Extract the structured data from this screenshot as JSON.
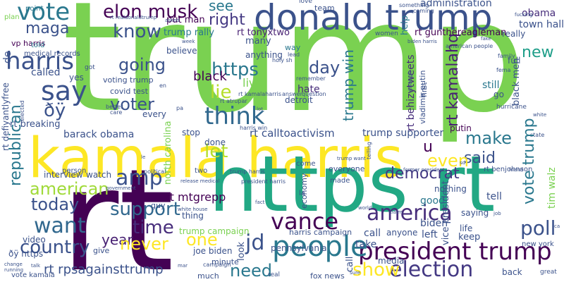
{
  "words": [
    {
      "text": "trump",
      "color": "#7ad151"
    },
    {
      "text": "rt",
      "color": "#440154"
    },
    {
      "text": "kamala harris",
      "color": "#fde725"
    },
    {
      "text": "https rt",
      "color": "#22a884"
    },
    {
      "text": "donald trump",
      "color": "#3b528b"
    },
    {
      "text": "president trump",
      "color": "#440154"
    },
    {
      "text": "people",
      "color": "#2a788e"
    },
    {
      "text": "elon musk",
      "color": "#440154"
    },
    {
      "text": "vote",
      "color": "#2a788e"
    },
    {
      "text": "think",
      "color": "#31688e"
    },
    {
      "text": "say",
      "color": "#3b528b"
    },
    {
      "text": "harris",
      "color": "#3b528b"
    },
    {
      "text": "america",
      "color": "#472d7b"
    },
    {
      "text": "election",
      "color": "#443983"
    },
    {
      "text": "vance",
      "color": "#440154"
    },
    {
      "text": "amp",
      "color": "#3b528b"
    },
    {
      "text": "want",
      "color": "#31688e"
    },
    {
      "text": "poll",
      "color": "#3b528b"
    },
    {
      "text": "know",
      "color": "#3b528b"
    },
    {
      "text": "maga",
      "color": "#3b528b"
    },
    {
      "text": "right",
      "color": "#443983"
    },
    {
      "text": "https",
      "color": "#2a788e"
    },
    {
      "text": "going",
      "color": "#3b528b"
    },
    {
      "text": "voter",
      "color": "#3b528b"
    },
    {
      "text": "republican",
      "color": "#2a788e"
    },
    {
      "text": "american",
      "color": "#a0da39"
    },
    {
      "text": "time",
      "color": "#472d7b"
    },
    {
      "text": "support",
      "color": "#31688e"
    },
    {
      "text": "country",
      "color": "#3b528b"
    },
    {
      "text": "year",
      "color": "#482173"
    },
    {
      "text": "need",
      "color": "#2a788e"
    },
    {
      "text": "show",
      "color": "#fde725"
    },
    {
      "text": "never",
      "color": "#fde725"
    },
    {
      "text": "democrat",
      "color": "#443983"
    },
    {
      "text": "today",
      "color": "#3b528b"
    },
    {
      "text": "make",
      "color": "#2a788e"
    },
    {
      "text": "said",
      "color": "#3b528b"
    },
    {
      "text": "even",
      "color": "#fde725"
    },
    {
      "text": "vote trump",
      "color": "#2a788e"
    },
    {
      "text": "rt kamalahq",
      "color": "#482173"
    },
    {
      "text": "trump win",
      "color": "#2a788e"
    },
    {
      "text": "rt rpsagainsttrump",
      "color": "#3b528b"
    },
    {
      "text": "rt mtgrepp",
      "color": "#440154"
    },
    {
      "text": "rt calltoactivism",
      "color": "#3b528b"
    },
    {
      "text": "new",
      "color": "#1f9e89"
    },
    {
      "text": "day",
      "color": "#3b528b"
    },
    {
      "text": "lie",
      "color": "#b5de2b"
    },
    {
      "text": "let",
      "color": "#b5de2b"
    },
    {
      "text": "one",
      "color": "#fde725"
    },
    {
      "text": "jd",
      "color": "#3b528b"
    },
    {
      "text": "see",
      "color": "#2a788e"
    },
    {
      "text": "u",
      "color": "#440154"
    },
    {
      "text": "ðÿ",
      "color": "#3b528b"
    },
    {
      "text": "black",
      "color": "#440154"
    },
    {
      "text": "live",
      "color": "#7ad151"
    },
    {
      "text": "hate",
      "color": "#472d7b"
    },
    {
      "text": "trump supporter",
      "color": "#3b528b"
    },
    {
      "text": "barack obama",
      "color": "#3b528b"
    },
    {
      "text": "rt behizytweets",
      "color": "#472d7b"
    },
    {
      "text": "tim walz",
      "color": "#7ad151"
    },
    {
      "text": "rt gunthereagleman",
      "color": "#440154"
    },
    {
      "text": "rt tonyxtwo",
      "color": "#482173"
    },
    {
      "text": "administration",
      "color": "#3b528b"
    },
    {
      "text": "trump rally",
      "color": "#2a788e"
    },
    {
      "text": "put man",
      "color": "#440154"
    },
    {
      "text": "obama",
      "color": "#472d7b"
    },
    {
      "text": "town hall",
      "color": "#3b528b"
    },
    {
      "text": "rt breaking",
      "color": "#3b528b"
    },
    {
      "text": "voting trump",
      "color": "#3b528b"
    },
    {
      "text": "covid test",
      "color": "#3b528b"
    },
    {
      "text": "detroit",
      "color": "#3b528b"
    },
    {
      "text": "vp harris",
      "color": "#440154"
    },
    {
      "text": "de",
      "color": "#3b528b"
    },
    {
      "text": "rt defiyantlyfree",
      "color": "#3b528b"
    },
    {
      "text": "north carolina",
      "color": "#7ad151"
    },
    {
      "text": "vladimir putin",
      "color": "#3b528b"
    },
    {
      "text": "black men",
      "color": "#3b528b"
    },
    {
      "text": "still",
      "color": "#2a788e"
    },
    {
      "text": "got",
      "color": "#3b528b"
    },
    {
      "text": "go",
      "color": "#3b528b"
    },
    {
      "text": "putin",
      "color": "#440154"
    },
    {
      "text": "full",
      "color": "#3b528b"
    },
    {
      "text": "really",
      "color": "#3b528b"
    },
    {
      "text": "called",
      "color": "#3b528b"
    },
    {
      "text": "yes",
      "color": "#3b528b"
    },
    {
      "text": "told",
      "color": "#2a788e"
    },
    {
      "text": "medical records",
      "color": "#3b528b"
    },
    {
      "text": "plan",
      "color": "#7ad151"
    },
    {
      "text": "point",
      "color": "#2a788e"
    },
    {
      "text": "believe",
      "color": "#3b528b"
    },
    {
      "text": "anything",
      "color": "#3b528b"
    },
    {
      "text": "way",
      "color": "#2a788e"
    },
    {
      "text": "many",
      "color": "#3b528b"
    },
    {
      "text": "help",
      "color": "#2a788e"
    },
    {
      "text": "every",
      "color": "#3b528b"
    },
    {
      "text": "stop",
      "color": "#3b528b"
    },
    {
      "text": "done",
      "color": "#3b528b"
    },
    {
      "text": "first",
      "color": "#3b528b"
    },
    {
      "text": "biden",
      "color": "#3b528b"
    },
    {
      "text": "good",
      "color": "#2a788e"
    },
    {
      "text": "left",
      "color": "#3b528b"
    },
    {
      "text": "keep",
      "color": "#3b528b"
    },
    {
      "text": "life",
      "color": "#3b528b"
    },
    {
      "text": "saying",
      "color": "#3b528b"
    },
    {
      "text": "tell",
      "color": "#3b528b"
    },
    {
      "text": "nothing",
      "color": "#3b528b"
    },
    {
      "text": "vice president",
      "color": "#3b528b"
    },
    {
      "text": "call",
      "color": "#3b528b"
    },
    {
      "text": "anyone",
      "color": "#3b528b"
    },
    {
      "text": "take",
      "color": "#3b528b"
    },
    {
      "text": "media",
      "color": "#3b528b"
    },
    {
      "text": "harris campaign",
      "color": "#3b528b"
    },
    {
      "text": "trump campaign",
      "color": "#7ad151"
    },
    {
      "text": "joe biden",
      "color": "#3b528b"
    },
    {
      "text": "pennsylvania",
      "color": "#3b528b"
    },
    {
      "text": "look",
      "color": "#3b528b"
    },
    {
      "text": "thing",
      "color": "#3b528b"
    },
    {
      "text": "guy",
      "color": "#3b528b"
    },
    {
      "text": "minute",
      "color": "#3b528b"
    },
    {
      "text": "much",
      "color": "#3b528b"
    },
    {
      "text": "fox news",
      "color": "#3b528b"
    },
    {
      "text": "back",
      "color": "#3b528b"
    },
    {
      "text": "new york",
      "color": "#3b528b"
    },
    {
      "text": "interview",
      "color": "#3b528b"
    },
    {
      "text": "watch",
      "color": "#3b528b"
    },
    {
      "text": "person",
      "color": "#3b528b"
    },
    {
      "text": "video",
      "color": "#3b528b"
    },
    {
      "text": "ðÿ https",
      "color": "#3b528b"
    },
    {
      "text": "give",
      "color": "#3b528b"
    },
    {
      "text": "everyone",
      "color": "#3b528b"
    },
    {
      "text": "come",
      "color": "#3b528b"
    },
    {
      "text": "made",
      "color": "#3b528b"
    },
    {
      "text": "la",
      "color": "#3b528b"
    },
    {
      "text": "economy",
      "color": "#3b528b"
    },
    {
      "text": "rt benjohnson",
      "color": "#3b528b"
    },
    {
      "text": "two",
      "color": "#3b528b"
    },
    {
      "text": "real",
      "color": "#3b528b"
    },
    {
      "text": "campaign",
      "color": "#3b528b"
    },
    {
      "text": "vote kamala",
      "color": "#3b528b"
    },
    {
      "text": "great",
      "color": "#3b528b"
    },
    {
      "text": "state",
      "color": "#3b528b"
    },
    {
      "text": "women",
      "color": "#3b528b"
    },
    {
      "text": "hurricane",
      "color": "#3b528b"
    },
    {
      "text": "fema",
      "color": "#3b528b"
    },
    {
      "text": "family",
      "color": "#3b528b"
    },
    {
      "text": "team",
      "color": "#3b528b"
    },
    {
      "text": "love",
      "color": "#3b528b"
    },
    {
      "text": "something",
      "color": "#3b528b"
    },
    {
      "text": "fucking",
      "color": "#3b528b"
    },
    {
      "text": "american people",
      "color": "#3b528b"
    },
    {
      "text": "enough",
      "color": "#3b528b"
    },
    {
      "text": "remember",
      "color": "#3b528b"
    },
    {
      "text": "holy sh",
      "color": "#3b528b"
    },
    {
      "text": "lead",
      "color": "#3b528b"
    },
    {
      "text": "harris win",
      "color": "#3b528b"
    },
    {
      "text": "rt kamalaharris",
      "color": "#3b528b"
    },
    {
      "text": "rt atrupar",
      "color": "#3b528b"
    },
    {
      "text": "answer",
      "color": "#3b528b"
    },
    {
      "text": "question",
      "color": "#3b528b"
    },
    {
      "text": "better",
      "color": "#3b528b"
    },
    {
      "text": "care",
      "color": "#3b528b"
    },
    {
      "text": "elected",
      "color": "#3b528b"
    },
    {
      "text": "political",
      "color": "#3b528b"
    },
    {
      "text": "trump harris",
      "color": "#3b528b"
    },
    {
      "text": "president harris",
      "color": "#3b528b"
    },
    {
      "text": "release medical",
      "color": "#3b528b"
    },
    {
      "text": "white house",
      "color": "#3b528b"
    },
    {
      "text": "government",
      "color": "#3b528b"
    },
    {
      "text": "change",
      "color": "#3b528b"
    },
    {
      "text": "running",
      "color": "#3b528b"
    },
    {
      "text": "friend",
      "color": "#3b528b"
    },
    {
      "text": "former president",
      "color": "#3b528b"
    },
    {
      "text": "trump want",
      "color": "#3b528b"
    },
    {
      "text": "world",
      "color": "#3b528b"
    },
    {
      "text": "claim",
      "color": "#3b528b"
    },
    {
      "text": "telling",
      "color": "#3b528b"
    },
    {
      "text": "asked",
      "color": "#3b528b"
    },
    {
      "text": "rt realdonaldtrump",
      "color": "#3b528b"
    },
    {
      "text": "week",
      "color": "#3b528b"
    },
    {
      "text": "fake",
      "color": "#3b528b"
    },
    {
      "text": "coming",
      "color": "#3b528b"
    },
    {
      "text": "biden harris",
      "color": "#3b528b"
    },
    {
      "text": "le",
      "color": "#3b528b"
    },
    {
      "text": "sd",
      "color": "#3b528b"
    },
    {
      "text": "job",
      "color": "#3b528b"
    },
    {
      "text": "lot",
      "color": "#3b528b"
    },
    {
      "text": "talk",
      "color": "#3b528b"
    },
    {
      "text": "mar",
      "color": "#3b528b"
    },
    {
      "text": "sure",
      "color": "#3b528b"
    },
    {
      "text": "fact",
      "color": "#3b528b"
    },
    {
      "text": "white",
      "color": "#3b528b"
    },
    {
      "text": "ca",
      "color": "#3b528b"
    },
    {
      "text": "en",
      "color": "#3b528b"
    },
    {
      "text": "pa",
      "color": "#3b528b"
    }
  ]
}
